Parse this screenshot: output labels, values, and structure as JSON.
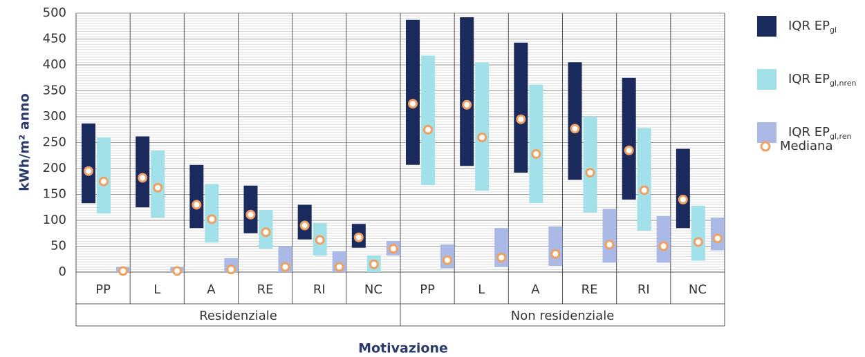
{
  "chart_data": {
    "type": "range_bar",
    "ylabel": "kWh/m² anno",
    "xlabel": "Motivazione",
    "groups": [
      {
        "label": "Residenziale",
        "categories": [
          "PP",
          "L",
          "A",
          "RE",
          "RI",
          "NC"
        ]
      },
      {
        "label": "Non residenziale",
        "categories": [
          "PP",
          "L",
          "A",
          "RE",
          "RI",
          "NC"
        ]
      }
    ],
    "ylim": [
      0,
      500
    ],
    "yticks": [
      0,
      50,
      100,
      150,
      200,
      250,
      300,
      350,
      400,
      450,
      500
    ],
    "grid": true,
    "legend": "right",
    "median_label": "Mediana",
    "median_color": "#f0a060",
    "series": [
      {
        "name": "IQR EP",
        "name_sub": "gl",
        "color": "#1b2a5c",
        "low": [
          133,
          125,
          85,
          75,
          63,
          47,
          207,
          205,
          192,
          178,
          140,
          85
        ],
        "high": [
          287,
          262,
          207,
          167,
          130,
          93,
          487,
          492,
          443,
          405,
          375,
          238
        ],
        "median": [
          195,
          182,
          130,
          111,
          90,
          67,
          325,
          323,
          295,
          277,
          235,
          140
        ]
      },
      {
        "name": "IQR EP",
        "name_sub": "gl,nren",
        "color": "#a3e1ea",
        "low": [
          113,
          105,
          57,
          45,
          32,
          0,
          168,
          157,
          133,
          115,
          80,
          22
        ],
        "high": [
          260,
          235,
          170,
          120,
          95,
          32,
          418,
          405,
          362,
          300,
          278,
          128
        ],
        "median": [
          175,
          163,
          102,
          77,
          62,
          15,
          275,
          260,
          228,
          192,
          158,
          58
        ]
      },
      {
        "name": "IQR EP",
        "name_sub": "gl,ren",
        "color": "#aab9e6",
        "low": [
          0,
          0,
          0,
          0,
          0,
          32,
          7,
          10,
          12,
          18,
          18,
          42
        ],
        "high": [
          10,
          10,
          27,
          50,
          40,
          60,
          53,
          85,
          88,
          122,
          108,
          105
        ],
        "median": [
          2,
          2,
          5,
          10,
          10,
          45,
          23,
          28,
          35,
          53,
          50,
          65
        ]
      }
    ]
  }
}
